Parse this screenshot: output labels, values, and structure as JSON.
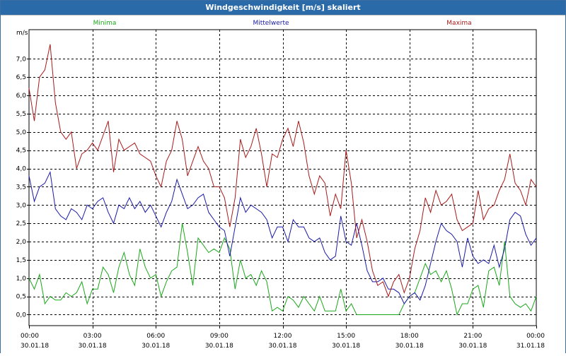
{
  "window": {
    "title": "Windgeschwindigkeit [m/s] skaliert"
  },
  "chart_data": {
    "type": "line",
    "title": "Windgeschwindigkeit [m/s] skaliert",
    "ylabel": "m/s",
    "ylim": [
      -0.3,
      7.8
    ],
    "xlim": [
      0,
      24
    ],
    "grid": true,
    "legend_placement": "top",
    "y_ticks": [
      0.0,
      0.5,
      1.0,
      1.5,
      2.0,
      2.5,
      3.0,
      3.5,
      4.0,
      4.5,
      5.0,
      5.5,
      6.0,
      6.5,
      7.0
    ],
    "y_tick_labels": [
      "0,0",
      "0,5",
      "1,0",
      "1,5",
      "2,0",
      "2,5",
      "3,0",
      "3,5",
      "4,0",
      "4,5",
      "5,0",
      "5,5",
      "6,0",
      "6,5",
      "7,0"
    ],
    "x_ticks": [
      0,
      3,
      6,
      9,
      12,
      15,
      18,
      21,
      24
    ],
    "x_tick_labels": [
      {
        "time": "00:00",
        "date": "30.01.18"
      },
      {
        "time": "03:00",
        "date": "30.01.18"
      },
      {
        "time": "06:00",
        "date": "30.01.18"
      },
      {
        "time": "09:00",
        "date": "30.01.18"
      },
      {
        "time": "12:00",
        "date": "30.01.18"
      },
      {
        "time": "15:00",
        "date": "30.01.18"
      },
      {
        "time": "18:00",
        "date": "30.01.18"
      },
      {
        "time": "21:00",
        "date": "30.01.18"
      },
      {
        "time": "00:00",
        "date": "31.01.18"
      }
    ],
    "series": [
      {
        "name": "Minima",
        "color": "#1aa81a",
        "x": [
          0,
          0.25,
          0.5,
          0.75,
          1.0,
          1.25,
          1.5,
          1.75,
          2.0,
          2.25,
          2.5,
          2.75,
          3.0,
          3.25,
          3.5,
          3.75,
          4.0,
          4.25,
          4.5,
          4.75,
          5.0,
          5.25,
          5.5,
          5.75,
          6.0,
          6.25,
          6.5,
          6.75,
          7.0,
          7.25,
          7.5,
          7.75,
          8.0,
          8.25,
          8.5,
          8.75,
          9.0,
          9.25,
          9.5,
          9.75,
          10.0,
          10.25,
          10.5,
          10.75,
          11.0,
          11.25,
          11.5,
          11.75,
          12.0,
          12.25,
          12.5,
          12.75,
          13.0,
          13.25,
          13.5,
          13.75,
          14.0,
          14.25,
          14.5,
          14.75,
          15.0,
          15.25,
          15.5,
          15.75,
          16.0,
          16.25,
          16.5,
          16.75,
          17.0,
          17.25,
          17.5,
          17.75,
          18.0,
          18.25,
          18.5,
          18.75,
          19.0,
          19.25,
          19.5,
          19.75,
          20.0,
          20.25,
          20.5,
          20.75,
          21.0,
          21.25,
          21.5,
          21.75,
          22.0,
          22.25,
          22.5,
          22.75,
          23.0,
          23.25,
          23.5,
          23.75,
          24.0
        ],
        "values": [
          1.0,
          0.7,
          1.1,
          0.3,
          0.5,
          0.4,
          0.4,
          0.6,
          0.5,
          0.6,
          0.9,
          0.3,
          0.7,
          0.7,
          1.3,
          1.1,
          0.6,
          1.3,
          1.7,
          1.1,
          0.8,
          1.8,
          1.3,
          1.0,
          1.1,
          0.5,
          0.9,
          1.2,
          1.3,
          2.5,
          1.7,
          0.8,
          2.1,
          1.9,
          1.7,
          1.8,
          1.7,
          2.1,
          1.8,
          0.7,
          1.5,
          1.0,
          1.1,
          0.8,
          1.2,
          0.9,
          0.1,
          0.2,
          0.1,
          0.5,
          0.4,
          0.2,
          0.5,
          0.3,
          0.1,
          0.5,
          0.1,
          0.1,
          0.1,
          0.7,
          0.1,
          0.3,
          0.0,
          0.0,
          0.0,
          0.0,
          0.0,
          0.0,
          0.0,
          0.0,
          0.0,
          0.3,
          0.5,
          0.6,
          1.0,
          1.4,
          1.1,
          1.2,
          0.9,
          1.2,
          0.7,
          0.0,
          0.3,
          0.3,
          0.7,
          0.8,
          0.2,
          1.2,
          1.3,
          0.8,
          2.0,
          0.5,
          0.3,
          0.2,
          0.3,
          0.1,
          0.5
        ]
      },
      {
        "name": "Mittelwerte",
        "color": "#1a1aa8",
        "x": [
          0,
          0.25,
          0.5,
          0.75,
          1.0,
          1.25,
          1.5,
          1.75,
          2.0,
          2.25,
          2.5,
          2.75,
          3.0,
          3.25,
          3.5,
          3.75,
          4.0,
          4.25,
          4.5,
          4.75,
          5.0,
          5.25,
          5.5,
          5.75,
          6.0,
          6.25,
          6.5,
          6.75,
          7.0,
          7.25,
          7.5,
          7.75,
          8.0,
          8.25,
          8.5,
          8.75,
          9.0,
          9.25,
          9.5,
          9.75,
          10.0,
          10.25,
          10.5,
          10.75,
          11.0,
          11.25,
          11.5,
          11.75,
          12.0,
          12.25,
          12.5,
          12.75,
          13.0,
          13.25,
          13.5,
          13.75,
          14.0,
          14.25,
          14.5,
          14.75,
          15.0,
          15.25,
          15.5,
          15.75,
          16.0,
          16.25,
          16.5,
          16.75,
          17.0,
          17.25,
          17.5,
          17.75,
          18.0,
          18.25,
          18.5,
          18.75,
          19.0,
          19.25,
          19.5,
          19.75,
          20.0,
          20.25,
          20.5,
          20.75,
          21.0,
          21.25,
          21.5,
          21.75,
          22.0,
          22.25,
          22.5,
          22.75,
          23.0,
          23.25,
          23.5,
          23.75,
          24.0
        ],
        "values": [
          3.8,
          3.1,
          3.5,
          3.6,
          3.9,
          2.9,
          2.7,
          2.6,
          2.9,
          2.8,
          2.6,
          3.0,
          2.9,
          3.1,
          3.2,
          2.8,
          2.5,
          3.0,
          2.9,
          3.2,
          2.9,
          3.1,
          2.8,
          3.0,
          2.7,
          2.4,
          2.8,
          3.1,
          3.7,
          3.3,
          2.9,
          3.0,
          3.2,
          3.3,
          2.8,
          2.6,
          2.4,
          2.3,
          1.6,
          2.4,
          3.2,
          2.8,
          3.0,
          2.9,
          2.8,
          2.6,
          2.1,
          2.4,
          2.4,
          2.0,
          2.6,
          2.4,
          2.4,
          2.1,
          2.0,
          2.1,
          1.7,
          1.5,
          1.6,
          2.7,
          2.0,
          1.9,
          2.5,
          1.9,
          1.2,
          0.9,
          0.9,
          1.0,
          0.7,
          0.7,
          0.6,
          0.3,
          0.5,
          0.6,
          0.4,
          0.8,
          1.4,
          2.0,
          2.5,
          2.3,
          2.2,
          2.0,
          1.3,
          2.1,
          1.6,
          1.4,
          1.5,
          1.4,
          1.9,
          1.3,
          1.8,
          2.6,
          2.8,
          2.7,
          2.2,
          1.9,
          2.1
        ]
      },
      {
        "name": "Maxima",
        "color": "#a81a1a",
        "x": [
          0,
          0.25,
          0.5,
          0.75,
          1.0,
          1.25,
          1.5,
          1.75,
          2.0,
          2.25,
          2.5,
          2.75,
          3.0,
          3.25,
          3.5,
          3.75,
          4.0,
          4.25,
          4.5,
          4.75,
          5.0,
          5.25,
          5.5,
          5.75,
          6.0,
          6.25,
          6.5,
          6.75,
          7.0,
          7.25,
          7.5,
          7.75,
          8.0,
          8.25,
          8.5,
          8.75,
          9.0,
          9.25,
          9.5,
          9.75,
          10.0,
          10.25,
          10.5,
          10.75,
          11.0,
          11.25,
          11.5,
          11.75,
          12.0,
          12.25,
          12.5,
          12.75,
          13.0,
          13.25,
          13.5,
          13.75,
          14.0,
          14.25,
          14.5,
          14.75,
          15.0,
          15.25,
          15.5,
          15.75,
          16.0,
          16.25,
          16.5,
          16.75,
          17.0,
          17.25,
          17.5,
          17.75,
          18.0,
          18.25,
          18.5,
          18.75,
          19.0,
          19.25,
          19.5,
          19.75,
          20.0,
          20.25,
          20.5,
          20.75,
          21.0,
          21.25,
          21.5,
          21.75,
          22.0,
          22.25,
          22.5,
          22.75,
          23.0,
          23.25,
          23.5,
          23.75,
          24.0
        ],
        "values": [
          6.2,
          5.3,
          6.5,
          6.7,
          7.4,
          5.8,
          5.0,
          4.8,
          5.0,
          4.0,
          4.4,
          4.5,
          4.7,
          4.5,
          4.9,
          5.3,
          3.9,
          4.8,
          4.5,
          4.6,
          4.7,
          4.4,
          4.3,
          4.2,
          3.8,
          3.5,
          4.2,
          4.5,
          5.3,
          4.8,
          3.8,
          4.2,
          4.6,
          4.2,
          4.0,
          3.5,
          3.5,
          3.2,
          2.4,
          3.2,
          4.8,
          4.3,
          4.6,
          5.1,
          4.4,
          3.5,
          4.4,
          4.3,
          4.8,
          5.1,
          4.6,
          5.3,
          4.7,
          3.8,
          3.3,
          3.8,
          3.6,
          2.7,
          3.3,
          2.9,
          4.5,
          3.6,
          2.1,
          2.6,
          2.0,
          1.2,
          0.8,
          0.9,
          0.5,
          0.9,
          1.1,
          0.6,
          1.0,
          1.8,
          2.3,
          3.2,
          2.8,
          3.4,
          3.0,
          3.1,
          3.3,
          2.6,
          2.3,
          2.4,
          2.5,
          3.4,
          2.6,
          2.9,
          3.0,
          3.4,
          3.7,
          4.4,
          3.6,
          3.4,
          3.0,
          3.7,
          3.5
        ]
      }
    ]
  }
}
